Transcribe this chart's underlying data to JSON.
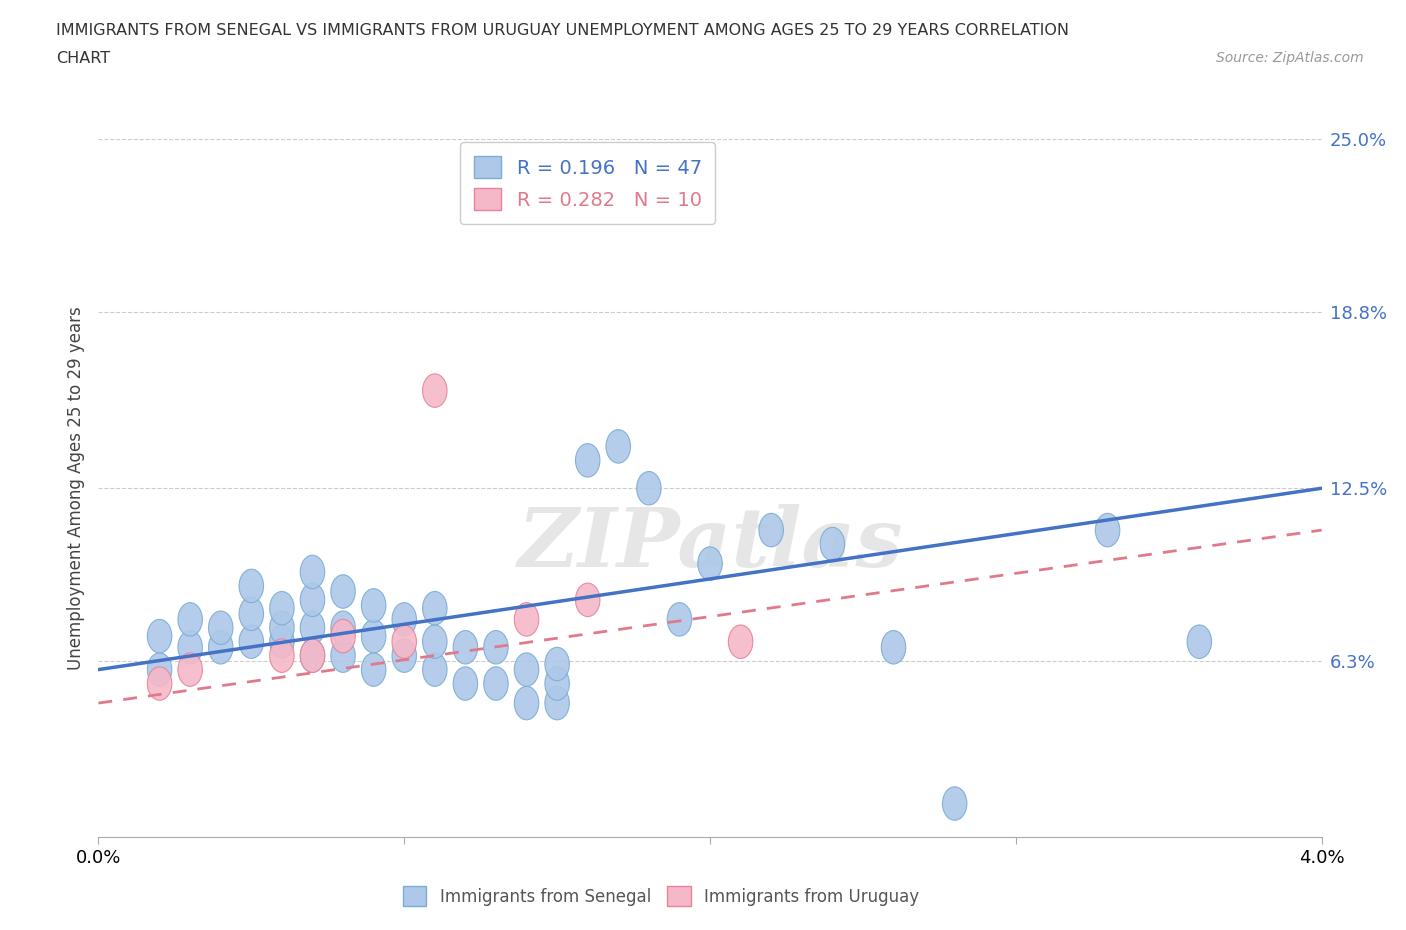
{
  "title_line1": "IMMIGRANTS FROM SENEGAL VS IMMIGRANTS FROM URUGUAY UNEMPLOYMENT AMONG AGES 25 TO 29 YEARS CORRELATION",
  "title_line2": "CHART",
  "source": "Source: ZipAtlas.com",
  "ylabel": "Unemployment Among Ages 25 to 29 years",
  "xlim": [
    0.0,
    0.04
  ],
  "ylim": [
    0.0,
    0.25
  ],
  "xticks": [
    0.0,
    0.01,
    0.02,
    0.03,
    0.04
  ],
  "xticklabels": [
    "0.0%",
    "",
    "",
    "",
    "4.0%"
  ],
  "ytick_positions": [
    0.063,
    0.125,
    0.188,
    0.25
  ],
  "ytick_labels": [
    "6.3%",
    "12.5%",
    "18.8%",
    "25.0%"
  ],
  "senegal_color": "#adc8e8",
  "senegal_edge_color": "#7aadd4",
  "uruguay_color": "#f5b8c8",
  "uruguay_edge_color": "#e8829a",
  "line_senegal_color": "#4472c4",
  "line_uruguay_color": "#e07a8a",
  "bottom_legend1": "Immigrants from Senegal",
  "bottom_legend2": "Immigrants from Uruguay",
  "watermark": "ZIPatlas",
  "senegal_x": [
    0.002,
    0.002,
    0.003,
    0.003,
    0.004,
    0.004,
    0.005,
    0.005,
    0.005,
    0.006,
    0.006,
    0.006,
    0.007,
    0.007,
    0.007,
    0.007,
    0.008,
    0.008,
    0.008,
    0.009,
    0.009,
    0.009,
    0.01,
    0.01,
    0.011,
    0.011,
    0.011,
    0.012,
    0.012,
    0.013,
    0.013,
    0.014,
    0.014,
    0.015,
    0.015,
    0.015,
    0.016,
    0.017,
    0.018,
    0.019,
    0.02,
    0.022,
    0.024,
    0.026,
    0.028,
    0.033,
    0.036
  ],
  "senegal_y": [
    0.06,
    0.072,
    0.068,
    0.078,
    0.068,
    0.075,
    0.07,
    0.08,
    0.09,
    0.07,
    0.075,
    0.082,
    0.065,
    0.075,
    0.085,
    0.095,
    0.065,
    0.075,
    0.088,
    0.06,
    0.072,
    0.083,
    0.065,
    0.078,
    0.06,
    0.07,
    0.082,
    0.055,
    0.068,
    0.055,
    0.068,
    0.048,
    0.06,
    0.048,
    0.055,
    0.062,
    0.135,
    0.14,
    0.125,
    0.078,
    0.098,
    0.11,
    0.105,
    0.068,
    0.012,
    0.11,
    0.07
  ],
  "uruguay_x": [
    0.002,
    0.003,
    0.006,
    0.007,
    0.008,
    0.01,
    0.011,
    0.014,
    0.016,
    0.021
  ],
  "uruguay_y": [
    0.055,
    0.06,
    0.065,
    0.065,
    0.072,
    0.07,
    0.16,
    0.078,
    0.085,
    0.07
  ],
  "trend_senegal_x0": 0.0,
  "trend_senegal_y0": 0.06,
  "trend_senegal_x1": 0.04,
  "trend_senegal_y1": 0.125,
  "trend_uruguay_x0": 0.0,
  "trend_uruguay_y0": 0.048,
  "trend_uruguay_x1": 0.04,
  "trend_uruguay_y1": 0.11
}
